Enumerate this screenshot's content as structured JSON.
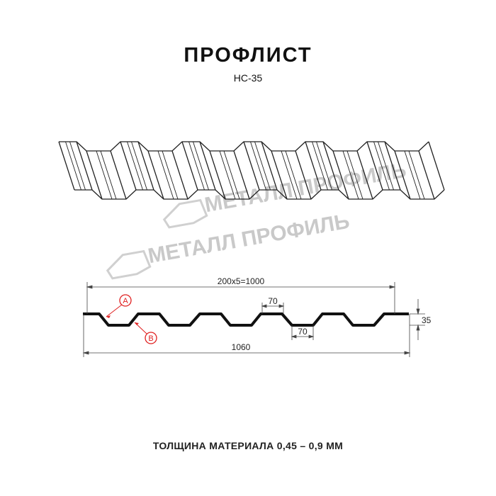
{
  "title": "ПРОФЛИСТ",
  "subtitle": "НС-35",
  "thickness_note": "ТОЛЩИНА МАТЕРИАЛА 0,45 – 0,9 ММ",
  "watermark": "МЕТАЛЛ ПРОФИЛЬ",
  "dimensions": {
    "pitch_total": "200x5=1000",
    "top_flat": "70",
    "bottom_flat": "70",
    "height": "35",
    "full_width": "1060"
  },
  "callouts": {
    "a": "A",
    "b": "B"
  },
  "colors": {
    "callout": "#e02020",
    "profile": "#111111",
    "watermark": "#c9c9c9"
  }
}
